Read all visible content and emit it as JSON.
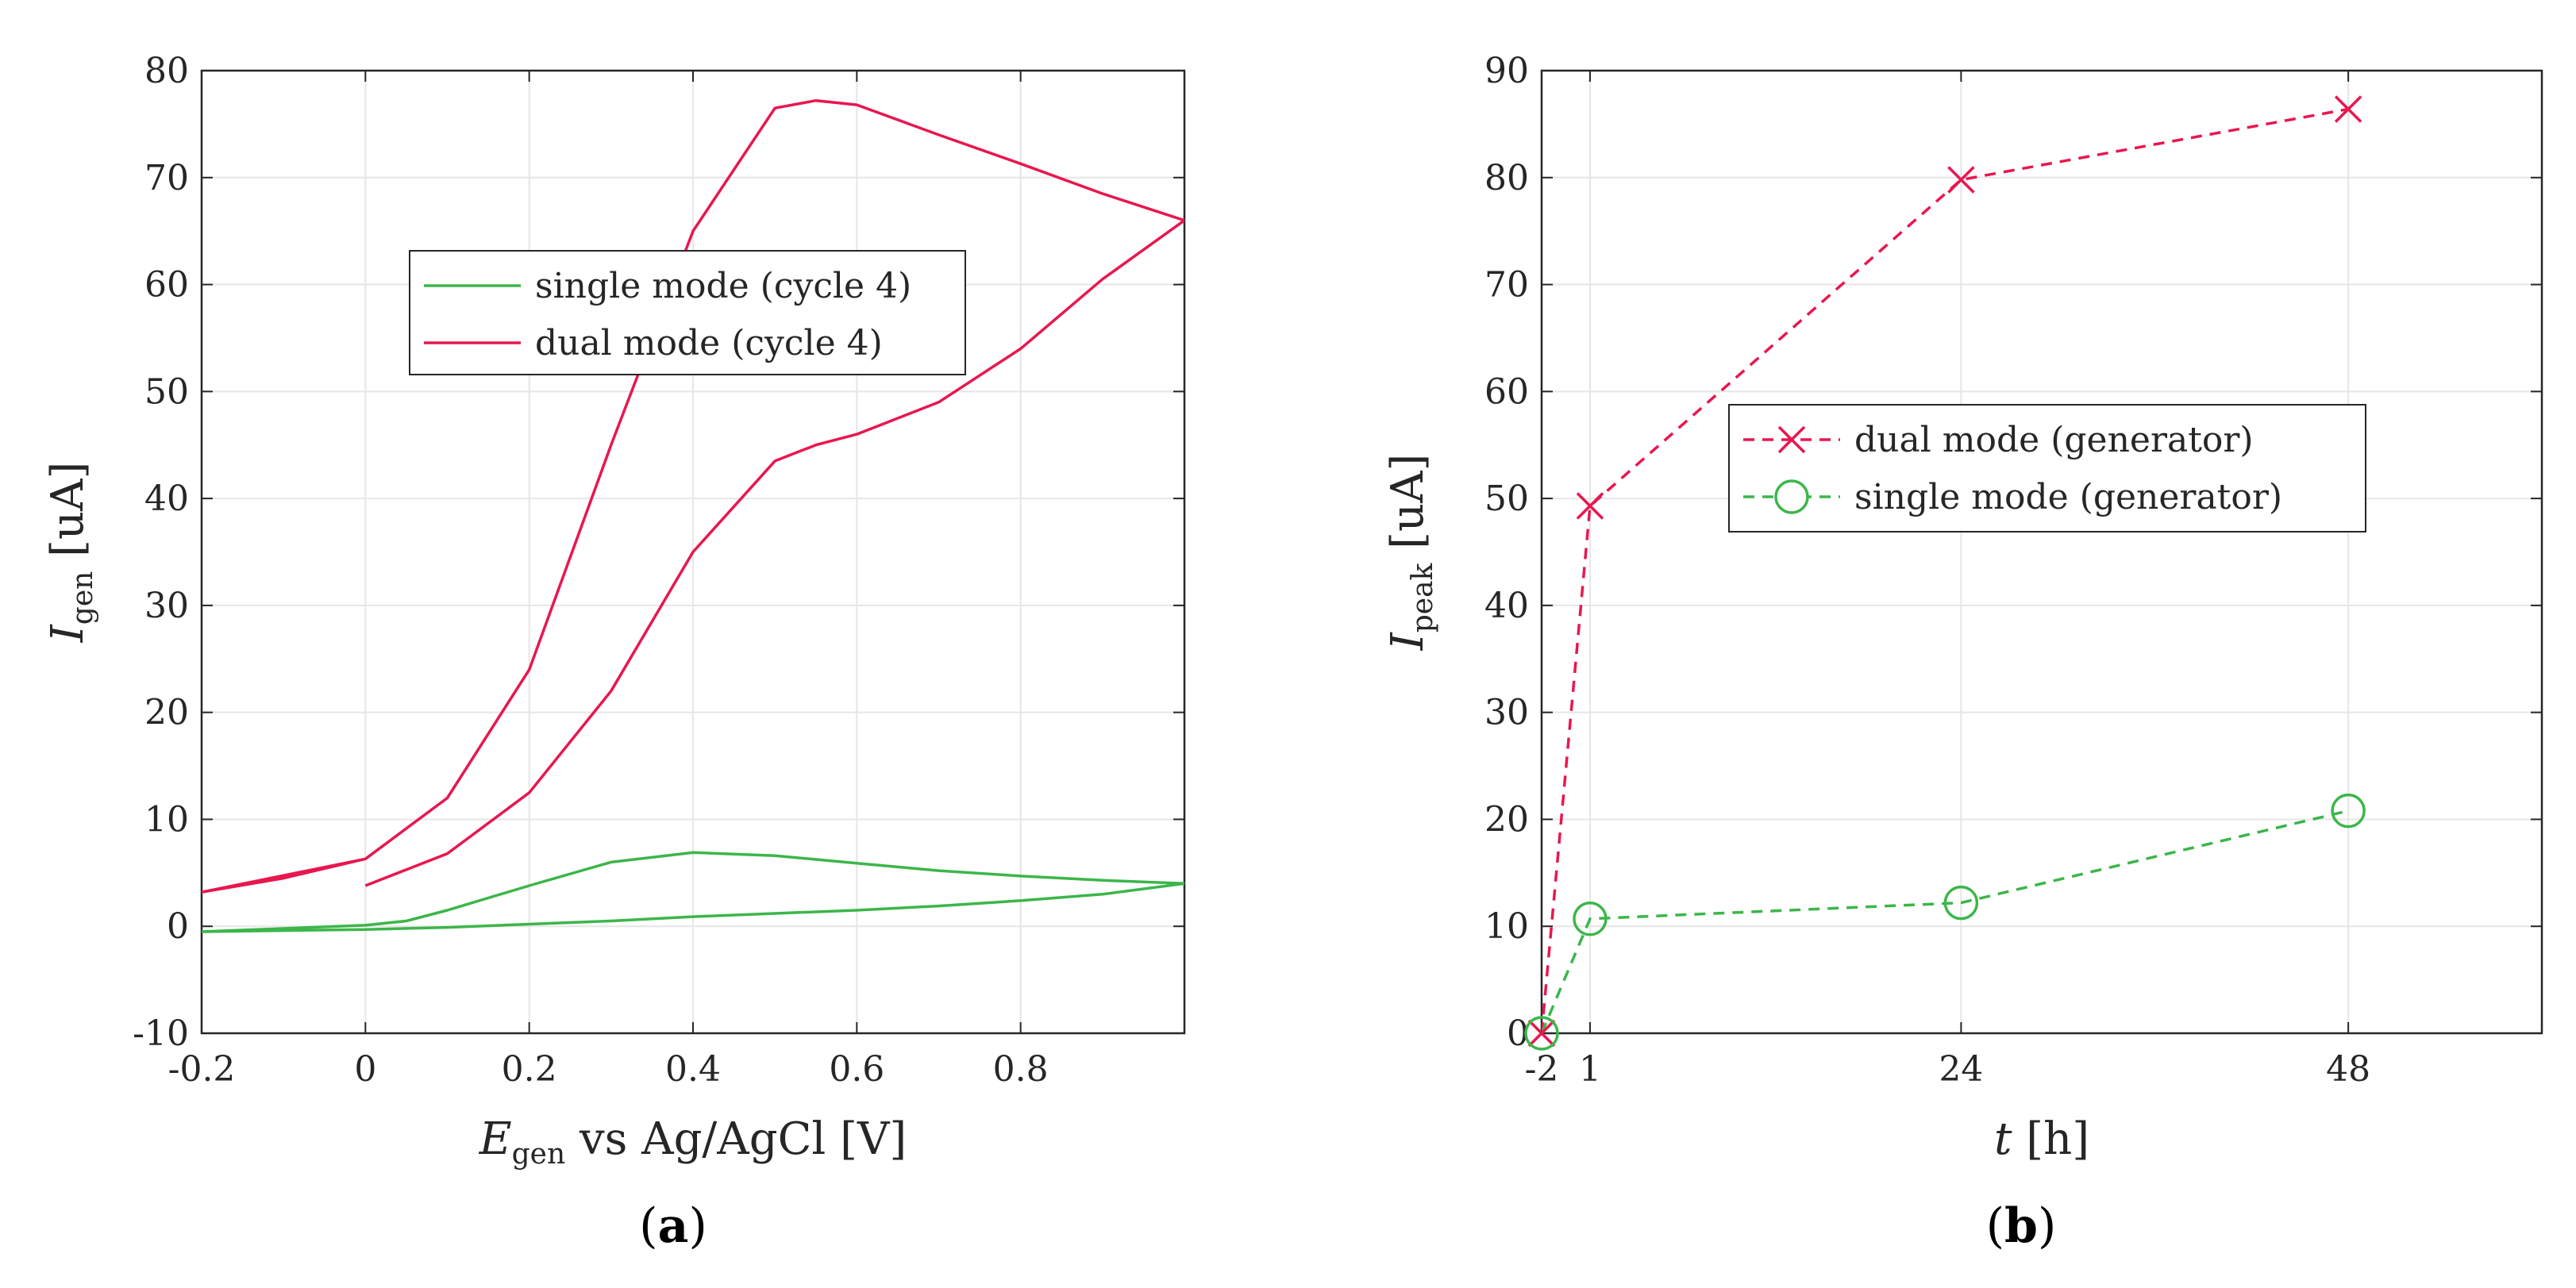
{
  "colors": {
    "dual": "#e8174f",
    "single": "#3cb64a",
    "grid": "#e6e6e6",
    "axis": "#262626"
  },
  "chart_data": [
    {
      "panel": "a",
      "type": "line",
      "xlabel": {
        "main": "E",
        "sub": "gen",
        "rest": " vs Ag/AgCl [V]"
      },
      "ylabel": {
        "main": "I",
        "sub": "gen",
        "rest": " [uA]"
      },
      "xlim": [
        -0.2,
        1.0
      ],
      "ylim": [
        -10,
        80
      ],
      "xticks": [
        -0.2,
        0,
        0.2,
        0.4,
        0.6,
        0.8
      ],
      "xtick_labels": [
        "-0.2",
        "0",
        "0.2",
        "0.4",
        "0.6",
        "0.8"
      ],
      "yticks": [
        -10,
        0,
        10,
        20,
        30,
        40,
        50,
        60,
        70,
        80
      ],
      "ytick_labels": [
        "-10",
        "0",
        "10",
        "20",
        "30",
        "40",
        "50",
        "60",
        "70",
        "80"
      ],
      "grid": true,
      "legend_position": "upper-center",
      "series": [
        {
          "name": "single mode (cycle 4)",
          "color_key": "single",
          "x": [
            0.0,
            -0.1,
            -0.2,
            0.0,
            0.05,
            0.1,
            0.2,
            0.3,
            0.4,
            0.5,
            0.6,
            0.7,
            0.8,
            0.9,
            1.0,
            0.9,
            0.8,
            0.7,
            0.6,
            0.5,
            0.4,
            0.3,
            0.2,
            0.1,
            0.0
          ],
          "y": [
            -0.3,
            -0.4,
            -0.5,
            0.1,
            0.5,
            1.5,
            3.8,
            6.0,
            6.9,
            6.6,
            5.9,
            5.2,
            4.7,
            4.3,
            4.0,
            3.0,
            2.4,
            1.9,
            1.5,
            1.2,
            0.9,
            0.5,
            0.2,
            -0.1,
            -0.3
          ]
        },
        {
          "name": "dual mode (cycle 4)",
          "color_key": "dual",
          "x": [
            0.0,
            -0.1,
            -0.2,
            0.0,
            0.1,
            0.2,
            0.3,
            0.4,
            0.5,
            0.55,
            0.6,
            0.7,
            0.8,
            0.9,
            1.0,
            0.9,
            0.8,
            0.7,
            0.6,
            0.55,
            0.5,
            0.4,
            0.3,
            0.2,
            0.1,
            0.0
          ],
          "y": [
            6.3,
            4.5,
            3.2,
            6.3,
            12.0,
            24.0,
            45.0,
            65.0,
            76.5,
            77.2,
            76.8,
            74.0,
            71.3,
            68.5,
            66.0,
            60.5,
            54.0,
            49.0,
            46.0,
            45.0,
            43.5,
            35.0,
            22.0,
            12.5,
            6.8,
            3.8
          ]
        }
      ]
    },
    {
      "panel": "b",
      "type": "line",
      "xlabel": {
        "main": "t",
        "sub": "",
        "rest": " [h]"
      },
      "ylabel": {
        "main": "I",
        "sub": "peak",
        "rest": " [uA]"
      },
      "xlim": [
        -2,
        60
      ],
      "ylim": [
        0,
        90
      ],
      "xticks": [
        -2,
        1,
        24,
        48
      ],
      "xtick_labels": [
        "-2",
        "1",
        "24",
        "48"
      ],
      "yticks": [
        0,
        10,
        20,
        30,
        40,
        50,
        60,
        70,
        80,
        90
      ],
      "ytick_labels": [
        "0",
        "10",
        "20",
        "30",
        "40",
        "50",
        "60",
        "70",
        "80",
        "90"
      ],
      "grid": true,
      "legend_position": "center",
      "series": [
        {
          "name": "dual mode (generator)",
          "color_key": "dual",
          "marker": "x",
          "x": [
            -2,
            1,
            24,
            48
          ],
          "y": [
            0,
            49.3,
            79.8,
            86.4
          ]
        },
        {
          "name": "single mode (generator)",
          "color_key": "single",
          "marker": "o",
          "x": [
            -2,
            1,
            24,
            48
          ],
          "y": [
            0,
            10.7,
            12.2,
            20.8
          ]
        }
      ]
    }
  ],
  "captions": {
    "a": "(a)",
    "b": "(b)"
  }
}
